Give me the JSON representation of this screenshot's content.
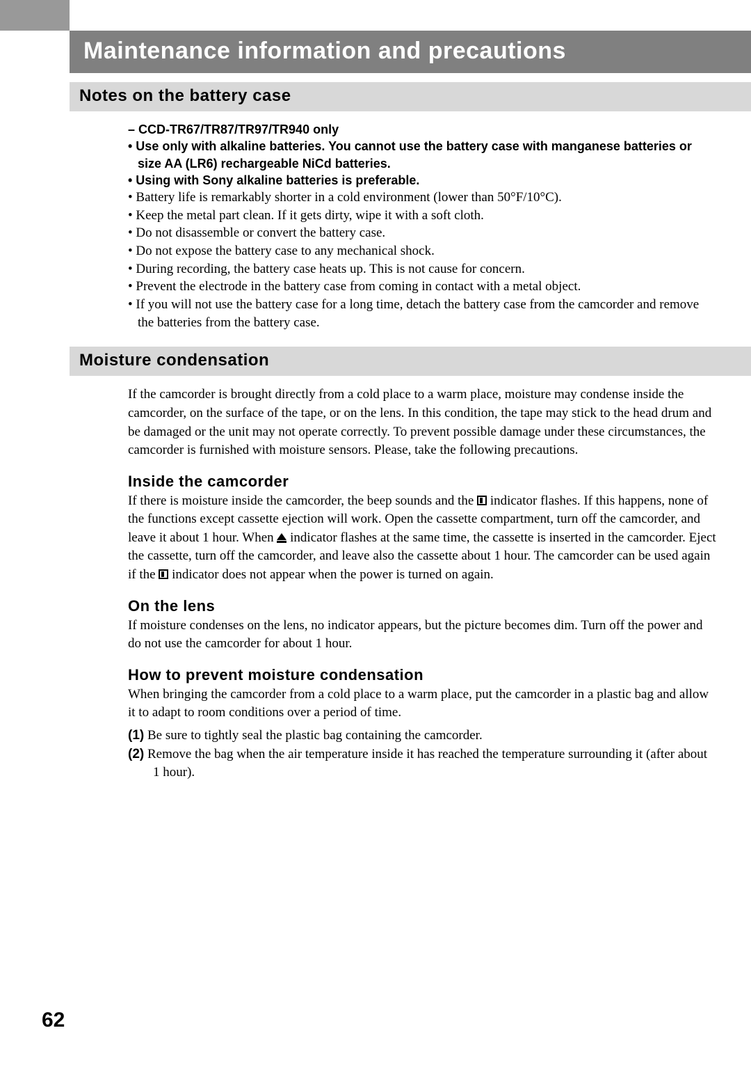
{
  "page": {
    "number": "62"
  },
  "title": "Maintenance information and precautions",
  "section1": {
    "header": "Notes on the battery case",
    "model_line": "– CCD-TR67/TR87/TR97/TR940 only",
    "bold_bullets": [
      "• Use only with alkaline batteries. You cannot use the battery case with manganese batteries or size AA (LR6) rechargeable NiCd batteries.",
      "• Using with Sony alkaline batteries is preferable."
    ],
    "bullets": [
      "• Battery life is remarkably shorter in a cold environment (lower than 50°F/10°C).",
      "• Keep the metal part clean. If it gets dirty, wipe it with a soft cloth.",
      "• Do not disassemble or convert the battery case.",
      "• Do not expose the battery case to any mechanical shock.",
      "• During recording, the battery case heats up. This is not cause for concern.",
      "• Prevent the electrode in the battery case from coming in contact with a metal object.",
      "• If you will not use the battery case for a long time, detach the battery case from the camcorder and remove the batteries from the battery case."
    ]
  },
  "section2": {
    "header": "Moisture condensation",
    "intro": "If the camcorder is brought directly from a cold place to a warm place, moisture may condense inside the camcorder, on the surface of the tape, or on the lens.  In this condition, the tape may stick to the head drum and be damaged or the unit may not operate correctly.  To prevent possible damage under these circumstances, the camcorder is furnished with moisture sensors.  Please, take the following precautions.",
    "sub1": {
      "head": "Inside the camcorder",
      "p1a": "If there is moisture inside the camcorder, the beep sounds and the ",
      "p1b": " indicator flashes.  If this happens, none of the functions except cassette ejection will work.  Open the cassette compartment, turn off the camcorder, and leave it about 1 hour.  When ",
      "p1c": " indicator flashes at the same time, the cassette is inserted in the camcorder.  Eject the cassette, turn off the camcorder, and leave also the cassette about 1 hour. The camcorder can be used again if the ",
      "p1d": " indicator does not appear when the power is turned on again."
    },
    "sub2": {
      "head": "On the lens",
      "p": "If moisture condenses on the lens, no indicator appears, but the picture becomes dim. Turn off the power and do not use the camcorder for about 1 hour."
    },
    "sub3": {
      "head": "How to prevent moisture condensation",
      "p": "When bringing the camcorder from a cold place to a warm place, put the camcorder in a plastic bag and allow it to adapt to room conditions over a period of time.",
      "n1_num": "(1)",
      "n1": " Be sure to tightly seal the plastic bag containing the camcorder.",
      "n2_num": "(2)",
      "n2": " Remove the bag when the air temperature inside it has reached the temperature surrounding it (after about 1 hour)."
    }
  }
}
